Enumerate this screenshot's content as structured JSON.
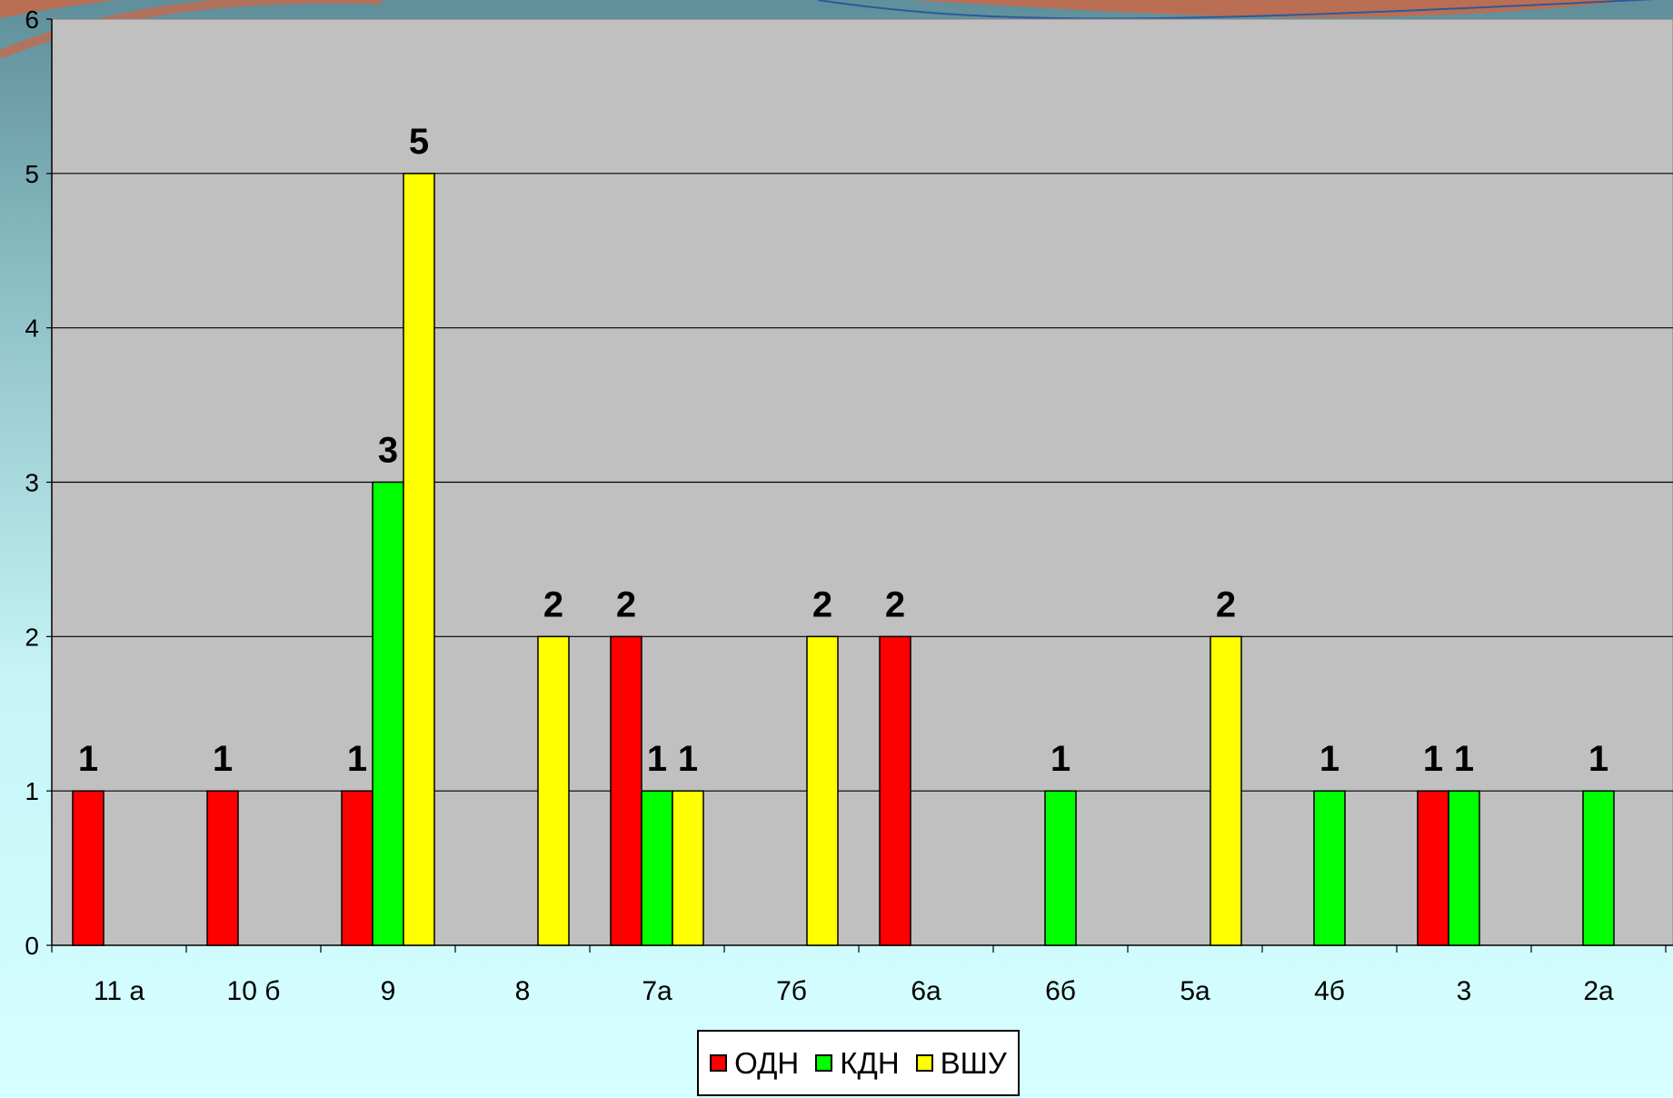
{
  "chart_data": {
    "type": "bar",
    "categories": [
      "11 а",
      "10 б",
      "9",
      "8",
      "7а",
      "7б",
      "6а",
      "6б",
      "5а",
      "4б",
      "3",
      "2а"
    ],
    "series": [
      {
        "name": "ОДН",
        "color": "#ff0000",
        "values": [
          1,
          1,
          1,
          null,
          2,
          null,
          2,
          null,
          null,
          null,
          1,
          null
        ]
      },
      {
        "name": "КДН",
        "color": "#00ff00",
        "values": [
          null,
          null,
          3,
          null,
          1,
          null,
          null,
          1,
          null,
          1,
          1,
          1
        ]
      },
      {
        "name": "ВШУ",
        "color": "#ffff00",
        "values": [
          null,
          null,
          5,
          2,
          1,
          2,
          null,
          null,
          2,
          null,
          null,
          null
        ]
      }
    ],
    "ylim": [
      0,
      6
    ],
    "yticks": [
      0,
      1,
      2,
      3,
      4,
      5,
      6
    ],
    "grid": true,
    "plot_background": "#c0c0c0",
    "legend_position": "bottom"
  }
}
